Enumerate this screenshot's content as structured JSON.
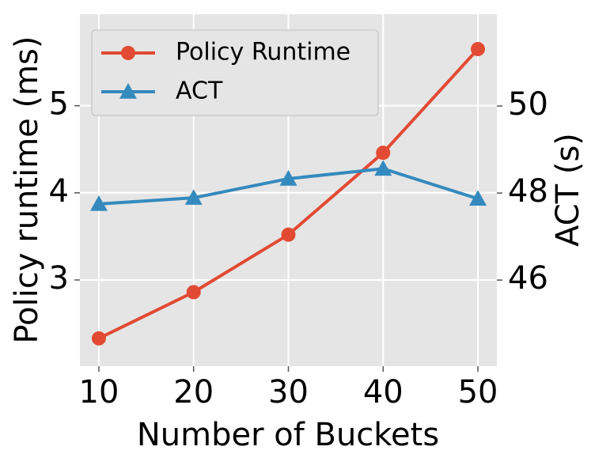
{
  "chart_data": {
    "type": "line",
    "x_label": "Number of Buckets",
    "y_label": "Policy runtime (ms)",
    "y2_label": "ACT (s)",
    "x": [
      10,
      20,
      30,
      40,
      50
    ],
    "series": [
      {
        "name": "Policy Runtime",
        "color": "#e24a33",
        "marker": "circle",
        "values": [
          2.33,
          2.86,
          3.52,
          4.46,
          5.65
        ]
      },
      {
        "name": "ACT",
        "color": "#348abd",
        "marker": "triangle",
        "axis": "y2",
        "values": [
          47.75,
          47.89,
          48.33,
          48.56,
          47.87
        ]
      }
    ],
    "xlim": [
      8,
      52
    ],
    "xticks": [
      10,
      20,
      30,
      40,
      50
    ],
    "ylim": [
      2.01,
      6.05
    ],
    "yticks": [
      3,
      4,
      5
    ],
    "y2lim": [
      44.02,
      52.11
    ],
    "y2ticks": [
      46,
      48,
      50
    ],
    "grid": true,
    "legend": "upper left"
  }
}
